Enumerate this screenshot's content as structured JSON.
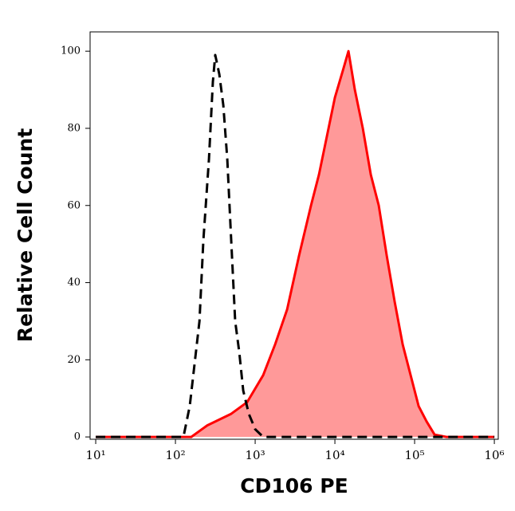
{
  "chart_data": {
    "type": "histogram-overlay",
    "xlabel": "CD106 PE",
    "ylabel": "Relative Cell Count",
    "xscale": "log",
    "xlim": [
      8.5,
      1120000
    ],
    "ylim": [
      -0.6,
      105
    ],
    "xticks": [
      {
        "value": 10,
        "label": "10¹"
      },
      {
        "value": 100,
        "label": "10²"
      },
      {
        "value": 1000,
        "label": "10³"
      },
      {
        "value": 10000,
        "label": "10⁴"
      },
      {
        "value": 100000,
        "label": "10⁵"
      },
      {
        "value": 1000000,
        "label": "10⁶"
      }
    ],
    "yticks": [
      0,
      20,
      40,
      60,
      80,
      100
    ],
    "series": [
      {
        "fill": "#ff9999",
        "color": "#ff0000",
        "dashed": false,
        "x": [
          10,
          158,
          251,
          501,
          794,
          1259,
          1778,
          2512,
          3548,
          5012,
          6310,
          7943,
          10000,
          12589,
          14791,
          17783,
          22387,
          28184,
          35481,
          44668,
          56234,
          70795,
          89125,
          112202,
          141254,
          177828,
          251189,
          1000000
        ],
        "values": [
          0,
          0,
          3,
          6,
          9,
          16,
          24,
          33,
          47,
          60,
          68,
          78,
          88,
          95,
          100,
          90,
          80,
          68,
          60,
          47,
          35,
          24,
          16,
          8,
          4,
          0.6,
          0,
          0
        ]
      },
      {
        "fill": null,
        "color": "#000000",
        "dashed": true,
        "x": [
          10,
          100,
          126,
          151,
          200,
          224,
          263,
          295,
          316,
          355,
          398,
          447,
          501,
          562,
          631,
          708,
          832,
          1000,
          1259,
          1995,
          1000000
        ],
        "values": [
          0,
          0,
          0,
          8,
          30,
          51,
          72,
          92,
          99,
          94,
          86,
          72,
          51,
          30,
          22,
          12,
          6,
          2,
          0,
          0,
          0
        ]
      }
    ]
  }
}
